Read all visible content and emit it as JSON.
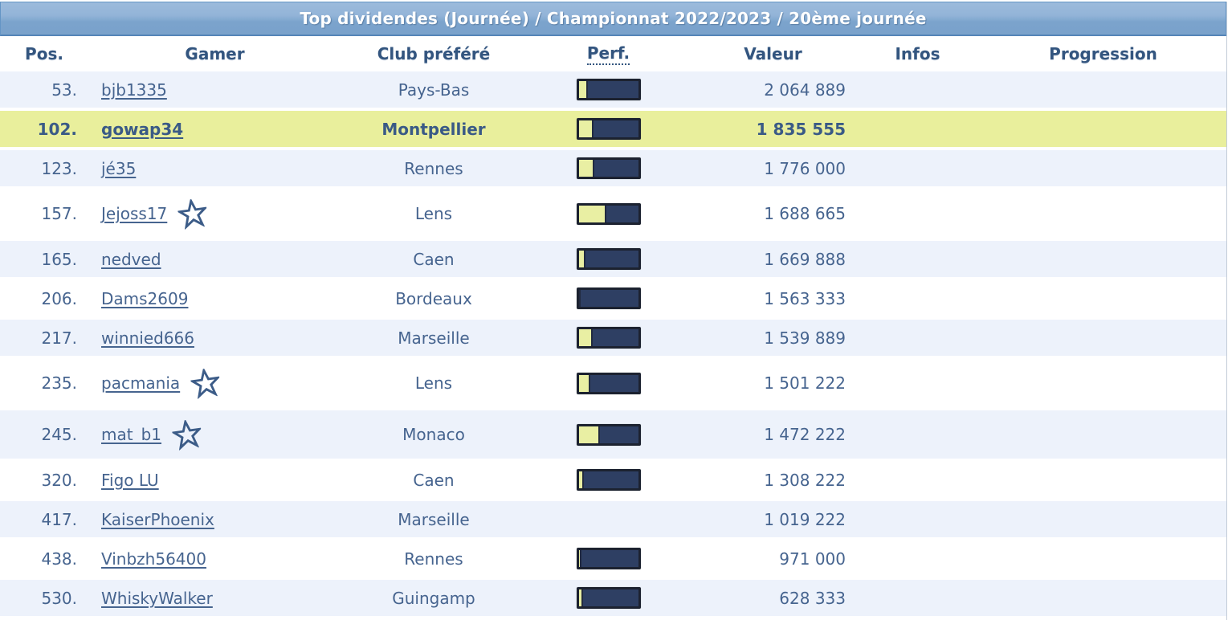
{
  "banner": {
    "title": "Top dividendes (Journée) / Championnat 2022/2023 / 20ème journée"
  },
  "columns": {
    "pos": "Pos.",
    "gamer": "Gamer",
    "club": "Club préféré",
    "perf": "Perf.",
    "valeur": "Valeur",
    "infos": "Infos",
    "progression": "Progression"
  },
  "colors": {
    "banner_blue_top": "#9cbbdc",
    "banner_blue_bottom": "#7aa2cb",
    "header_text": "#33557f",
    "row_text": "#46648f",
    "row_alt_bg": "#edf2fb",
    "row_highlight_bg": "#e9ef9c",
    "perf_fill_yellow": "#e9efa3",
    "perf_track_navy": "#2e3f63",
    "perf_border": "#1c2230"
  },
  "rows": [
    {
      "pos": "53.",
      "gamer": "bjb1335",
      "club": "Pays-Bas",
      "perf_pct": 15,
      "valeur": "2 064 889",
      "infos": "",
      "progression": "",
      "star": false,
      "highlight": false
    },
    {
      "pos": "102.",
      "gamer": "gowap34",
      "club": "Montpellier",
      "perf_pct": 25,
      "valeur": "1 835 555",
      "infos": "",
      "progression": "",
      "star": false,
      "highlight": true
    },
    {
      "pos": "123.",
      "gamer": "jé35",
      "club": "Rennes",
      "perf_pct": 26,
      "valeur": "1 776 000",
      "infos": "",
      "progression": "",
      "star": false,
      "highlight": false
    },
    {
      "pos": "157.",
      "gamer": "Jejoss17",
      "club": "Lens",
      "perf_pct": 47,
      "valeur": "1 688 665",
      "infos": "",
      "progression": "",
      "star": true,
      "highlight": false
    },
    {
      "pos": "165.",
      "gamer": "nedved",
      "club": "Caen",
      "perf_pct": 12,
      "valeur": "1 669 888",
      "infos": "",
      "progression": "",
      "star": false,
      "highlight": false
    },
    {
      "pos": "206.",
      "gamer": "Dams2609",
      "club": "Bordeaux",
      "perf_pct": 4,
      "valeur": "1 563 333",
      "infos": "",
      "progression": "",
      "star": false,
      "highlight": false
    },
    {
      "pos": "217.",
      "gamer": "winnied666",
      "club": "Marseille",
      "perf_pct": 24,
      "valeur": "1 539 889",
      "infos": "",
      "progression": "",
      "star": false,
      "highlight": false
    },
    {
      "pos": "235.",
      "gamer": "pacmania",
      "club": "Lens",
      "perf_pct": 20,
      "valeur": "1 501 222",
      "infos": "",
      "progression": "",
      "star": true,
      "highlight": false
    },
    {
      "pos": "245.",
      "gamer": "mat_b1",
      "club": "Monaco",
      "perf_pct": 36,
      "valeur": "1 472 222",
      "infos": "",
      "progression": "",
      "star": true,
      "highlight": false
    },
    {
      "pos": "320.",
      "gamer": "Figo LU",
      "club": "Caen",
      "perf_pct": 9,
      "valeur": "1 308 222",
      "infos": "",
      "progression": "",
      "star": false,
      "highlight": false
    },
    {
      "pos": "417.",
      "gamer": "KaiserPhoenix",
      "club": "Marseille",
      "perf_pct": null,
      "valeur": "1 019 222",
      "infos": "",
      "progression": "",
      "star": false,
      "highlight": false
    },
    {
      "pos": "438.",
      "gamer": "Vinbzh56400",
      "club": "Rennes",
      "perf_pct": 5,
      "valeur": "971 000",
      "infos": "",
      "progression": "",
      "star": false,
      "highlight": false
    },
    {
      "pos": "530.",
      "gamer": "WhiskyWalker",
      "club": "Guingamp",
      "perf_pct": 7,
      "valeur": "628 333",
      "infos": "",
      "progression": "",
      "star": false,
      "highlight": false
    }
  ]
}
